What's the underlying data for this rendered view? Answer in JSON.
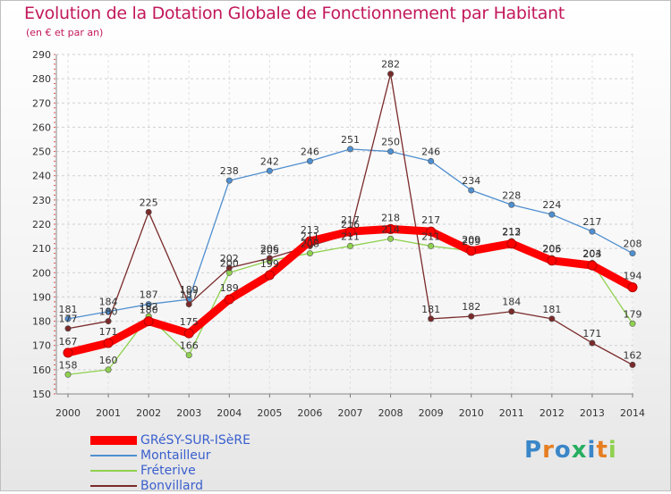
{
  "chart_data": {
    "type": "line",
    "title": "Evolution de la Dotation Globale de Fonctionnement par Habitant",
    "subtitle": "(en € et par an)",
    "x": [
      "2000",
      "2001",
      "2002",
      "2003",
      "2004",
      "2005",
      "2006",
      "2007",
      "2008",
      "2009",
      "2010",
      "2011",
      "2012",
      "2013",
      "2014"
    ],
    "ylim": [
      150,
      290
    ],
    "yticks": [
      150,
      160,
      170,
      180,
      190,
      200,
      210,
      220,
      230,
      240,
      250,
      260,
      270,
      280,
      290
    ],
    "grid": "horizontal dashed",
    "legend_position": "bottom-left",
    "series": [
      {
        "name": "GRéSY-SUR-ISèRE",
        "color": "#ff0000",
        "values": [
          167,
          171,
          180,
          175,
          189,
          199,
          213,
          217,
          218,
          217,
          209,
          212,
          205,
          203,
          194
        ]
      },
      {
        "name": "Montailleur",
        "color": "#4f8fd0",
        "values": [
          181,
          184,
          187,
          189,
          238,
          242,
          246,
          251,
          250,
          246,
          234,
          228,
          224,
          217,
          208
        ]
      },
      {
        "name": "Fréterive",
        "color": "#8fd14f",
        "values": [
          158,
          160,
          182,
          166,
          200,
          205,
          208,
          211,
          214,
          211,
          209,
          213,
          206,
          204,
          179
        ]
      },
      {
        "name": "Bonvillard",
        "color": "#7a2a2a",
        "values": [
          177,
          180,
          225,
          187,
          202,
          206,
          211,
          216,
          282,
          181,
          182,
          184,
          181,
          171,
          162
        ]
      }
    ]
  },
  "brand": {
    "text": "Proxiti",
    "letter_colors": [
      "#3a86c8",
      "#e67e22",
      "#3a86c8",
      "#27ae60",
      "#3a86c8",
      "#e67e22",
      "#8fd14f"
    ]
  }
}
